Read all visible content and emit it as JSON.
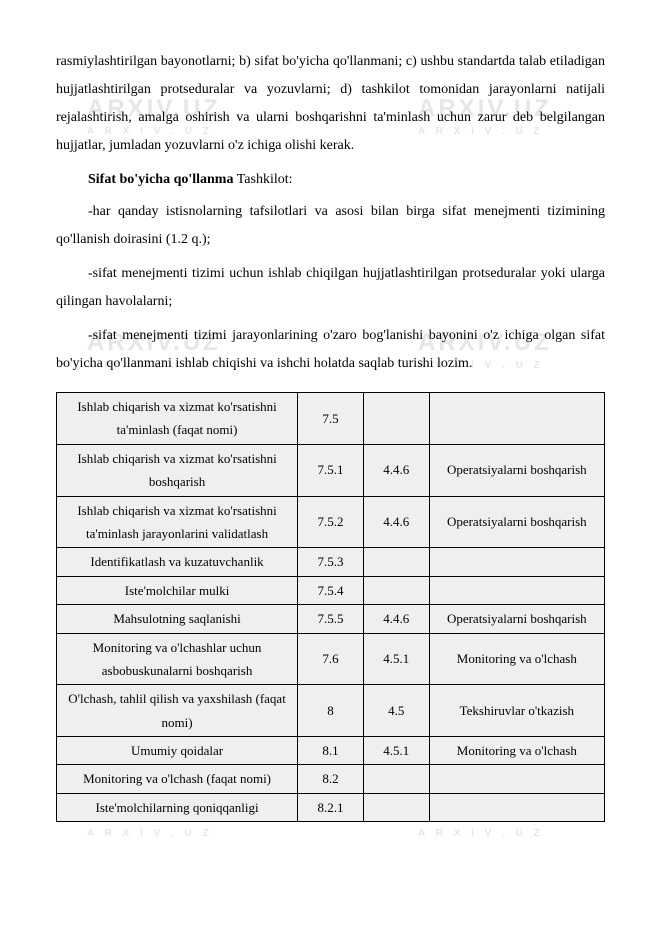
{
  "watermark": {
    "main": "ARXIV",
    "suffix": ".UZ"
  },
  "paragraphs": {
    "p1": "rasmiylashtirilgan bayonotlarni; b) sifat bo'yicha qo'llanmani; c) ushbu standartda talab etiladigan hujjatlashtirilgan protseduralar va yozuvlarni; d) tashkilot tomonidan jarayonlarni natijali rejalashtirish, amalga oshirish va ularni boshqarishni ta'minlash uchun zarur deb belgilangan hujjatlar, jumladan yozuvlarni o'z ichiga olishi kerak.",
    "heading_bold": "Sifat bo'yicha qo'llanma",
    "heading_rest": " Tashkilot:",
    "p2": "-har qanday istisnolarning tafsilotlari va asosi bilan birga sifat menejmenti tizimining qo'llanish doirasini (1.2 q.);",
    "p3": "-sifat menejmenti tizimi uchun ishlab chiqilgan hujjatlashtirilgan protseduralar yoki ularga qilingan havolalarni;",
    "p4": "-sifat menejmenti tizimi jarayonlarining o'zaro bog'lanishi bayonini o'z ichiga olgan sifat bo'yicha qo'llanmani ishlab chiqishi va ishchi holatda saqlab turishi lozim."
  },
  "table": {
    "rows": [
      {
        "name": "Ishlab chiqarish va xizmat ko'rsatishni ta'minlash (faqat nomi)",
        "c1": "7.5",
        "c2": "",
        "c3": ""
      },
      {
        "name": "Ishlab chiqarish va xizmat ko'rsatishni boshqarish",
        "c1": "7.5.1",
        "c2": "4.4.6",
        "c3": "Operatsiyalarni boshqarish"
      },
      {
        "name": "Ishlab chiqarish va xizmat ko'rsatishni ta'minlash jarayonlarini validatlash",
        "c1": "7.5.2",
        "c2": "4.4.6",
        "c3": "Operatsiyalarni boshqarish"
      },
      {
        "name": "Identifikatlash va kuzatuvchanlik",
        "c1": "7.5.3",
        "c2": "",
        "c3": ""
      },
      {
        "name": "Iste'molchilar mulki",
        "c1": "7.5.4",
        "c2": "",
        "c3": ""
      },
      {
        "name": "Mahsulotning saqlanishi",
        "c1": "7.5.5",
        "c2": "4.4.6",
        "c3": "Operatsiyalarni boshqarish"
      },
      {
        "name": "Monitoring va o'lchashlar uchun asbobuskunalarni boshqarish",
        "c1": "7.6",
        "c2": "4.5.1",
        "c3": "Monitoring va o'lchash"
      },
      {
        "name": "O'lchash, tahlil qilish va yaxshilash (faqat nomi)",
        "c1": "8",
        "c2": "4.5",
        "c3": "Tekshiruvlar o'tkazish"
      },
      {
        "name": "Umumiy qoidalar",
        "c1": "8.1",
        "c2": "4.5.1",
        "c3": "Monitoring va o'lchash"
      },
      {
        "name": "Monitoring va o'lchash (faqat nomi)",
        "c1": "8.2",
        "c2": "",
        "c3": ""
      },
      {
        "name": "Iste'molchilarning qoniqqanligi",
        "c1": "8.2.1",
        "c2": "",
        "c3": ""
      }
    ]
  }
}
